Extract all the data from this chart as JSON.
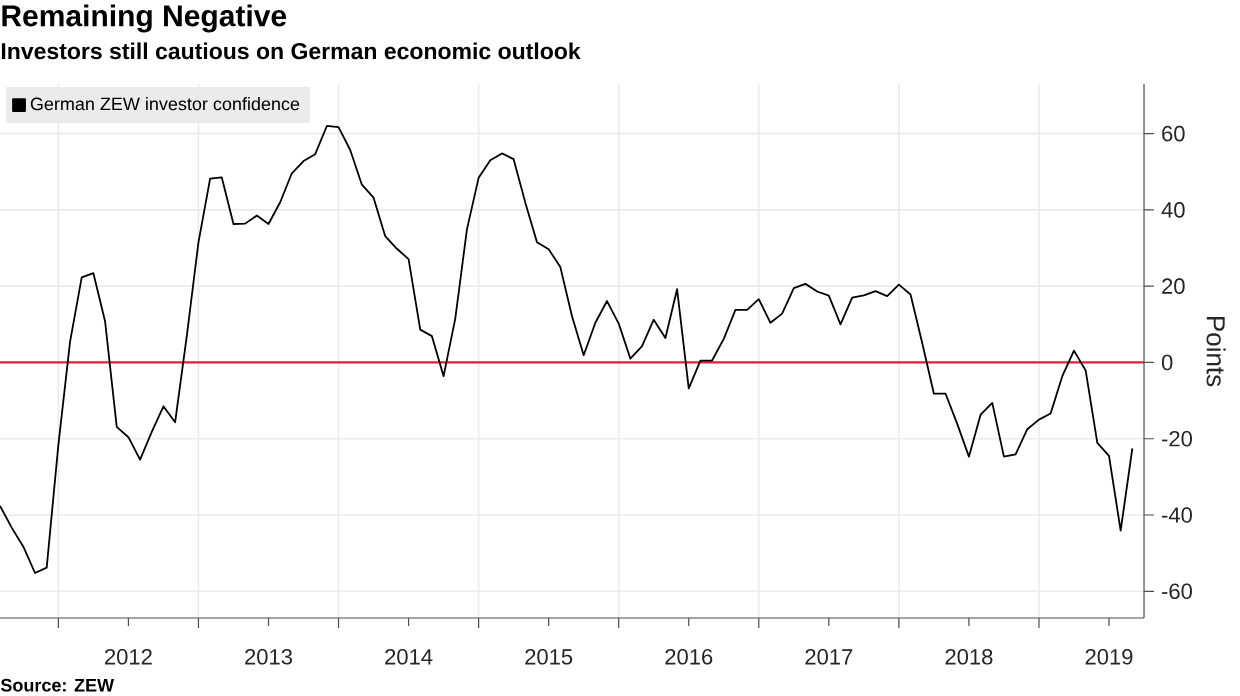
{
  "chart_data": {
    "type": "line",
    "title": "Remaining Negative",
    "subtitle": "Investors still cautious on German economic outlook",
    "ylabel": "Points",
    "annotations": [
      "Source: ZEW"
    ],
    "x": [
      "2011-08",
      "2011-09",
      "2011-10",
      "2011-11",
      "2011-12",
      "2012-01",
      "2012-02",
      "2012-03",
      "2012-04",
      "2012-05",
      "2012-06",
      "2012-07",
      "2012-08",
      "2012-09",
      "2012-10",
      "2012-11",
      "2012-12",
      "2013-01",
      "2013-02",
      "2013-03",
      "2013-04",
      "2013-05",
      "2013-06",
      "2013-07",
      "2013-08",
      "2013-09",
      "2013-10",
      "2013-11",
      "2013-12",
      "2014-01",
      "2014-02",
      "2014-03",
      "2014-04",
      "2014-05",
      "2014-06",
      "2014-07",
      "2014-08",
      "2014-09",
      "2014-10",
      "2014-11",
      "2014-12",
      "2015-01",
      "2015-02",
      "2015-03",
      "2015-04",
      "2015-05",
      "2015-06",
      "2015-07",
      "2015-08",
      "2015-09",
      "2015-10",
      "2015-11",
      "2015-12",
      "2016-01",
      "2016-02",
      "2016-03",
      "2016-04",
      "2016-05",
      "2016-06",
      "2016-07",
      "2016-08",
      "2016-09",
      "2016-10",
      "2016-11",
      "2016-12",
      "2017-01",
      "2017-02",
      "2017-03",
      "2017-04",
      "2017-05",
      "2017-06",
      "2017-07",
      "2017-08",
      "2017-09",
      "2017-10",
      "2017-11",
      "2017-12",
      "2018-01",
      "2018-02",
      "2018-03",
      "2018-04",
      "2018-05",
      "2018-06",
      "2018-07",
      "2018-08",
      "2018-09",
      "2018-10",
      "2018-11",
      "2018-12",
      "2019-01",
      "2019-02",
      "2019-03",
      "2019-04",
      "2019-05",
      "2019-06",
      "2019-07",
      "2019-08",
      "2019-09"
    ],
    "series": [
      {
        "name": "German ZEW investor confidence",
        "color": "#000000",
        "values": [
          -37.6,
          -43.3,
          -48.3,
          -55.2,
          -53.8,
          -21.6,
          5.4,
          22.3,
          23.4,
          10.8,
          -16.9,
          -19.6,
          -25.5,
          -18.2,
          -11.5,
          -15.7,
          6.9,
          31.5,
          48.2,
          48.5,
          36.3,
          36.4,
          38.5,
          36.3,
          42.0,
          49.6,
          52.8,
          54.6,
          62.0,
          61.7,
          55.7,
          46.6,
          43.2,
          33.1,
          29.8,
          27.1,
          8.6,
          6.9,
          -3.6,
          11.5,
          34.9,
          48.4,
          53.0,
          54.8,
          53.3,
          41.9,
          31.5,
          29.7,
          25.0,
          12.1,
          1.9,
          10.4,
          16.1,
          10.2,
          1.0,
          4.3,
          11.2,
          6.4,
          19.2,
          -6.8,
          0.5,
          0.5,
          6.2,
          13.8,
          13.8,
          16.6,
          10.4,
          12.8,
          19.5,
          20.6,
          18.6,
          17.5,
          10.0,
          17.0,
          17.6,
          18.7,
          17.4,
          20.4,
          17.8,
          5.1,
          -8.2,
          -8.2,
          -16.1,
          -24.7,
          -13.7,
          -10.6,
          -24.7,
          -24.1,
          -17.5,
          -15.0,
          -13.4,
          -3.6,
          3.1,
          -2.1,
          -21.1,
          -24.5,
          -44.1,
          -22.5
        ]
      }
    ],
    "xlim": [
      "2011-08",
      "2019-10"
    ],
    "xticks": [
      {
        "value": "2012-01",
        "label": null
      },
      {
        "value": "2012-07",
        "label": "2012"
      },
      {
        "value": "2013-01",
        "label": null
      },
      {
        "value": "2013-07",
        "label": "2013"
      },
      {
        "value": "2014-01",
        "label": null
      },
      {
        "value": "2014-07",
        "label": "2014"
      },
      {
        "value": "2015-01",
        "label": null
      },
      {
        "value": "2015-07",
        "label": "2015"
      },
      {
        "value": "2016-01",
        "label": null
      },
      {
        "value": "2016-07",
        "label": "2016"
      },
      {
        "value": "2017-01",
        "label": null
      },
      {
        "value": "2017-07",
        "label": "2017"
      },
      {
        "value": "2018-01",
        "label": null
      },
      {
        "value": "2018-07",
        "label": "2018"
      },
      {
        "value": "2019-01",
        "label": null
      },
      {
        "value": "2019-07",
        "label": "2019"
      }
    ],
    "ylim": [
      -67,
      73
    ],
    "yticks": [
      -60,
      -40,
      -20,
      0,
      20,
      40,
      60
    ],
    "ref_lines": [
      {
        "axis": "y",
        "value": 0,
        "color": "#e0203a"
      }
    ],
    "grid": true,
    "legend": "top left"
  }
}
